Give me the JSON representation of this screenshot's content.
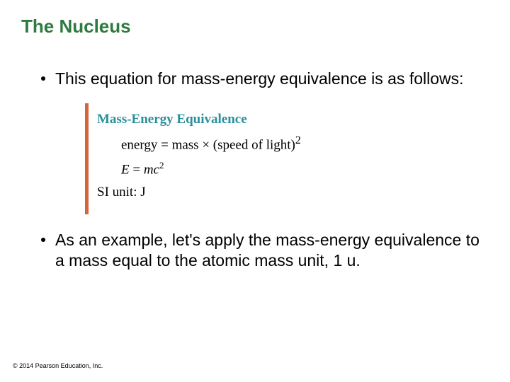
{
  "title": {
    "text": "The Nucleus",
    "color": "#2e7a3f"
  },
  "bullet1": "This equation for mass-energy equivalence is as follows:",
  "bullet2": "As an example, let's apply the mass-energy equivalence to a mass equal to the atomic mass unit, 1 u.",
  "equation_box": {
    "border_color": "#d6643a",
    "heading": {
      "text": "Mass-Energy Equivalence",
      "color": "#2a8f9b"
    },
    "word_equation": "energy  =  mass  ×  (speed of light)",
    "word_equation_exp": "2",
    "symbol_lhs": "E",
    "symbol_eq": "  =  ",
    "symbol_rhs": "mc",
    "symbol_exp": "2",
    "unit_label": "SI unit: J"
  },
  "copyright": "© 2014 Pearson Education, Inc.",
  "colors": {
    "body_text": "#000000",
    "bg": "#ffffff"
  }
}
